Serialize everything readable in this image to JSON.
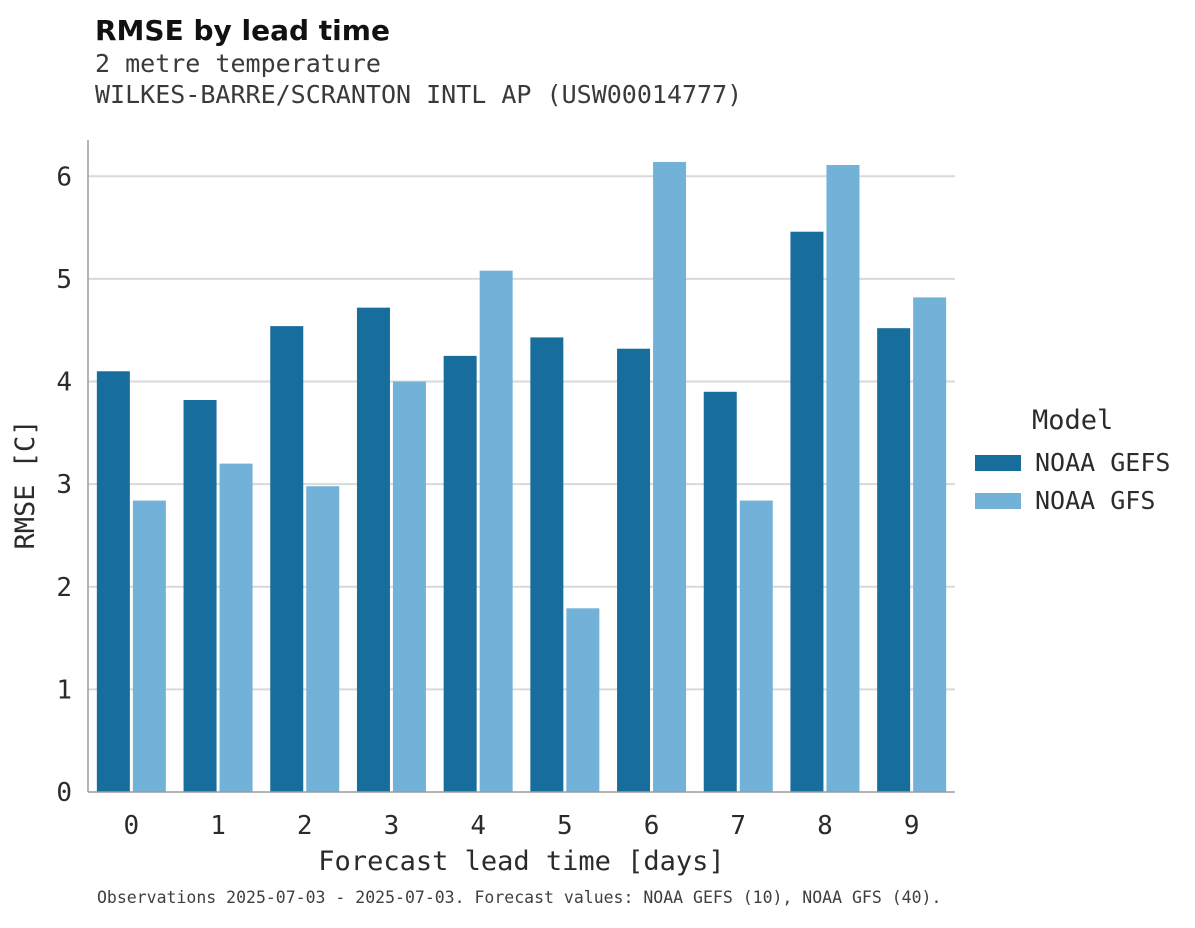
{
  "title": "RMSE by lead time",
  "subtitle1": "2 metre temperature",
  "subtitle2": "WILKES-BARRE/SCRANTON INTL AP (USW00014777)",
  "caption": "Observations 2025-07-03 - 2025-07-03. Forecast values: NOAA GEFS (10), NOAA GFS (40).",
  "legend": {
    "title": "Model",
    "entries": [
      {
        "label": "NOAA GEFS",
        "color": "#176d9c"
      },
      {
        "label": "NOAA GFS",
        "color": "#72b2d8"
      }
    ]
  },
  "chart_data": {
    "type": "bar",
    "title": "RMSE by lead time",
    "subtitle": "2 metre temperature — WILKES-BARRE/SCRANTON INTL AP (USW00014777)",
    "xlabel": "Forecast lead time [days]",
    "ylabel": "RMSE [C]",
    "categories": [
      0,
      1,
      2,
      3,
      4,
      5,
      6,
      7,
      8,
      9
    ],
    "series": [
      {
        "name": "NOAA GEFS",
        "color": "#176d9c",
        "values": [
          4.1,
          3.82,
          4.54,
          4.72,
          4.25,
          4.43,
          4.32,
          3.9,
          5.46,
          4.52
        ]
      },
      {
        "name": "NOAA GFS",
        "color": "#72b2d8",
        "values": [
          2.84,
          3.2,
          2.98,
          4.0,
          5.08,
          1.79,
          6.14,
          2.84,
          6.11,
          4.82
        ]
      }
    ],
    "ylim": [
      0,
      6.5
    ],
    "yticks": [
      0,
      1,
      2,
      3,
      4,
      5,
      6
    ],
    "grid": true,
    "legend_position": "right"
  }
}
